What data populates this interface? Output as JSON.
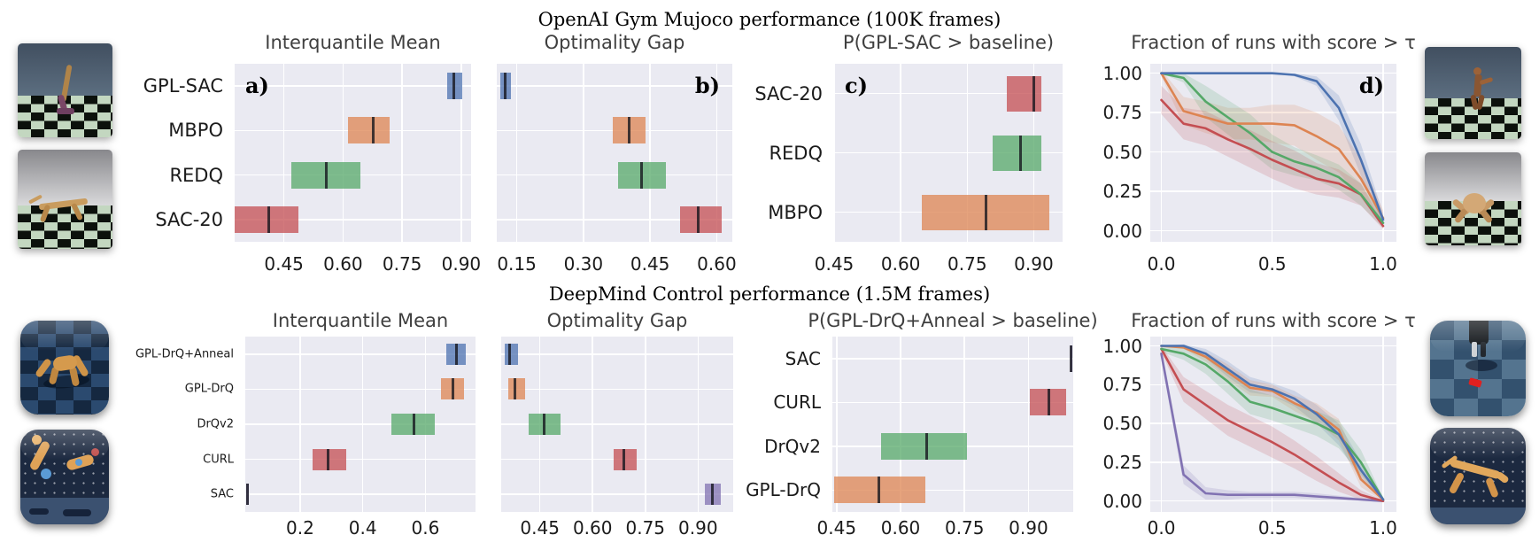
{
  "sections": [
    {
      "id": "gym",
      "title": "OpenAI Gym Mujoco performance (100K frames)"
    },
    {
      "id": "dmc",
      "title": "DeepMind Control performance (1.5M frames)"
    }
  ],
  "palette": {
    "blue": "#4C72B0",
    "orange": "#DD8452",
    "green": "#55A868",
    "red": "#C44E52",
    "purple": "#8172B2",
    "plot_background": "#EAEAF2",
    "gridline": "#FFFFFF",
    "center_line": "#16161E",
    "bar_alpha": 0.75
  },
  "thumbnails": {
    "gym_left": [
      "hopper",
      "half-cheetah"
    ],
    "gym_right": [
      "humanoid",
      "ant"
    ],
    "dmc_left": [
      "quadruped",
      "reacher"
    ],
    "dmc_right": [
      "walker",
      "cheetah"
    ]
  },
  "chart_data": [
    {
      "id": "gym-iqm",
      "type": "interval",
      "title": "Interquantile Mean",
      "panel_label": "a)",
      "panel_side": "left",
      "show_row_labels": true,
      "xlim": [
        0.325,
        0.925
      ],
      "xtick_values": [
        0.45,
        0.6,
        0.75,
        0.9
      ],
      "xtick_labels": [
        "0.45",
        "0.60",
        "0.75",
        "0.90"
      ],
      "rows": [
        {
          "label": "GPL-SAC",
          "color_key": "blue",
          "interval": [
            0.865,
            0.903
          ],
          "center": 0.882
        },
        {
          "label": "MBPO",
          "color_key": "orange",
          "interval": [
            0.612,
            0.718
          ],
          "center": 0.677
        },
        {
          "label": "REDQ",
          "color_key": "green",
          "interval": [
            0.468,
            0.645
          ],
          "center": 0.558
        },
        {
          "label": "SAC-20",
          "color_key": "red",
          "interval": [
            0.325,
            0.486
          ],
          "center": 0.411
        }
      ]
    },
    {
      "id": "gym-og",
      "type": "interval",
      "title": "Optimality Gap",
      "panel_label": "b)",
      "panel_side": "right",
      "show_row_labels": false,
      "xlim": [
        0.105,
        0.635
      ],
      "xtick_values": [
        0.15,
        0.3,
        0.45,
        0.6
      ],
      "xtick_labels": [
        "0.15",
        "0.30",
        "0.45",
        "0.60"
      ],
      "rows": [
        {
          "label": "GPL-SAC",
          "color_key": "blue",
          "interval": [
            0.112,
            0.137
          ],
          "center": 0.124
        },
        {
          "label": "MBPO",
          "color_key": "orange",
          "interval": [
            0.367,
            0.439
          ],
          "center": 0.402
        },
        {
          "label": "REDQ",
          "color_key": "green",
          "interval": [
            0.378,
            0.485
          ],
          "center": 0.431
        },
        {
          "label": "SAC-20",
          "color_key": "red",
          "interval": [
            0.518,
            0.612
          ],
          "center": 0.559
        }
      ]
    },
    {
      "id": "gym-prob",
      "type": "interval",
      "title": "P(GPL-SAC > baseline)",
      "panel_label": "c)",
      "panel_side": "left",
      "show_row_labels": true,
      "xlim": [
        0.45,
        0.965
      ],
      "xtick_values": [
        0.45,
        0.6,
        0.75,
        0.9
      ],
      "xtick_labels": [
        "0.45",
        "0.60",
        "0.75",
        "0.90"
      ],
      "rows": [
        {
          "label": "SAC-20",
          "color_key": "red",
          "interval": [
            0.84,
            0.918
          ],
          "center": 0.9
        },
        {
          "label": "REDQ",
          "color_key": "green",
          "interval": [
            0.807,
            0.918
          ],
          "center": 0.871
        },
        {
          "label": "MBPO",
          "color_key": "orange",
          "interval": [
            0.647,
            0.936
          ],
          "center": 0.793
        }
      ]
    },
    {
      "id": "gym-frac",
      "type": "line",
      "title": "Fraction of runs with score > τ",
      "panel_label": "d)",
      "panel_side": "right",
      "xlim": [
        -0.05,
        1.06
      ],
      "ylim": [
        -0.07,
        1.06
      ],
      "xtick_values": [
        0,
        0.5,
        1
      ],
      "xtick_labels": [
        "0.0",
        "0.5",
        "1.0"
      ],
      "ytick_values": [
        0,
        0.25,
        0.5,
        0.75,
        1
      ],
      "ytick_labels": [
        "0.00",
        "0.25",
        "0.50",
        "0.75",
        "1.00"
      ],
      "x": [
        0,
        0.1,
        0.2,
        0.3,
        0.4,
        0.5,
        0.6,
        0.7,
        0.8,
        0.9,
        1.0
      ],
      "series": [
        {
          "name": "GPL-SAC",
          "color_key": "blue",
          "y": [
            1.0,
            1.0,
            1.0,
            1.0,
            1.0,
            1.0,
            0.99,
            0.95,
            0.78,
            0.45,
            0.07
          ],
          "band": [
            0,
            0,
            0,
            0,
            0,
            0,
            0.01,
            0.03,
            0.08,
            0.1,
            0.04
          ]
        },
        {
          "name": "MBPO",
          "color_key": "orange",
          "y": [
            1.0,
            0.76,
            0.72,
            0.68,
            0.68,
            0.68,
            0.67,
            0.6,
            0.52,
            0.33,
            0.08
          ],
          "band": [
            0.02,
            0.09,
            0.1,
            0.1,
            0.1,
            0.12,
            0.13,
            0.15,
            0.15,
            0.12,
            0.05
          ]
        },
        {
          "name": "REDQ",
          "color_key": "green",
          "y": [
            1.0,
            0.97,
            0.82,
            0.72,
            0.62,
            0.5,
            0.44,
            0.4,
            0.34,
            0.23,
            0.05
          ],
          "band": [
            0,
            0.03,
            0.1,
            0.11,
            0.12,
            0.11,
            0.09,
            0.08,
            0.08,
            0.07,
            0.03
          ]
        },
        {
          "name": "SAC-20",
          "color_key": "red",
          "y": [
            0.83,
            0.68,
            0.65,
            0.58,
            0.52,
            0.45,
            0.39,
            0.33,
            0.3,
            0.23,
            0.03
          ],
          "band": [
            0.09,
            0.1,
            0.11,
            0.11,
            0.12,
            0.12,
            0.12,
            0.1,
            0.09,
            0.07,
            0.02
          ]
        }
      ]
    },
    {
      "id": "dmc-iqm",
      "type": "interval",
      "title": "Interquantile Mean",
      "panel_label": "",
      "panel_side": "left",
      "show_row_labels": true,
      "xlim": [
        0.025,
        0.76
      ],
      "xtick_values": [
        0.2,
        0.4,
        0.6
      ],
      "xtick_labels": [
        "0.2",
        "0.4",
        "0.6"
      ],
      "rows": [
        {
          "label": "GPL-DrQ+Anneal",
          "color_key": "blue",
          "interval": [
            0.668,
            0.728
          ],
          "center": 0.7
        },
        {
          "label": "GPL-DrQ",
          "color_key": "orange",
          "interval": [
            0.649,
            0.722
          ],
          "center": 0.687
        },
        {
          "label": "DrQv2",
          "color_key": "green",
          "interval": [
            0.491,
            0.63
          ],
          "center": 0.564
        },
        {
          "label": "CURL",
          "color_key": "red",
          "interval": [
            0.239,
            0.346
          ],
          "center": 0.289
        },
        {
          "label": "SAC",
          "color_key": "purple",
          "interval": [
            0.028,
            0.037
          ],
          "center": 0.032
        }
      ]
    },
    {
      "id": "dmc-og",
      "type": "interval",
      "title": "Optimality Gap",
      "panel_label": "",
      "panel_side": "right",
      "show_row_labels": false,
      "xlim": [
        0.34,
        1.0
      ],
      "xtick_values": [
        0.45,
        0.6,
        0.75,
        0.9
      ],
      "xtick_labels": [
        "0.45",
        "0.60",
        "0.75",
        "0.90"
      ],
      "rows": [
        {
          "label": "GPL-DrQ+Anneal",
          "color_key": "blue",
          "interval": [
            0.349,
            0.387
          ],
          "center": 0.364
        },
        {
          "label": "GPL-DrQ",
          "color_key": "orange",
          "interval": [
            0.36,
            0.409
          ],
          "center": 0.379
        },
        {
          "label": "DrQv2",
          "color_key": "green",
          "interval": [
            0.417,
            0.51
          ],
          "center": 0.461
        },
        {
          "label": "CURL",
          "color_key": "red",
          "interval": [
            0.659,
            0.725
          ],
          "center": 0.689
        },
        {
          "label": "SAC",
          "color_key": "purple",
          "interval": [
            0.919,
            0.965
          ],
          "center": 0.942
        }
      ]
    },
    {
      "id": "dmc-prob",
      "type": "interval",
      "title": "P(GPL-DrQ+Anneal > baseline)",
      "panel_label": "",
      "panel_side": "left",
      "show_row_labels": true,
      "xlim": [
        0.44,
        1.005
      ],
      "xtick_values": [
        0.45,
        0.6,
        0.75,
        0.9
      ],
      "xtick_labels": [
        "0.45",
        "0.60",
        "0.75",
        "0.90"
      ],
      "rows": [
        {
          "label": "SAC",
          "color_key": "purple",
          "interval": [
            0.999,
            1.001
          ],
          "center": 1.0
        },
        {
          "label": "CURL",
          "color_key": "red",
          "interval": [
            0.903,
            0.988
          ],
          "center": 0.947
        },
        {
          "label": "DrQv2",
          "color_key": "green",
          "interval": [
            0.554,
            0.756
          ],
          "center": 0.661
        },
        {
          "label": "GPL-DrQ",
          "color_key": "orange",
          "interval": [
            0.445,
            0.658
          ],
          "center": 0.549
        }
      ]
    },
    {
      "id": "dmc-frac",
      "type": "line",
      "title": "Fraction of runs with score > τ",
      "panel_label": "",
      "panel_side": "right",
      "xlim": [
        -0.05,
        1.06
      ],
      "ylim": [
        -0.07,
        1.06
      ],
      "xtick_values": [
        0,
        0.5,
        1
      ],
      "xtick_labels": [
        "0.0",
        "0.5",
        "1.0"
      ],
      "ytick_values": [
        0,
        0.25,
        0.5,
        0.75,
        1
      ],
      "ytick_labels": [
        "0.00",
        "0.25",
        "0.50",
        "0.75",
        "1.00"
      ],
      "x": [
        0,
        0.1,
        0.2,
        0.3,
        0.4,
        0.5,
        0.6,
        0.7,
        0.8,
        0.9,
        1.0
      ],
      "series": [
        {
          "name": "GPL-DrQ+Anneal",
          "color_key": "blue",
          "y": [
            1.0,
            1.0,
            0.95,
            0.85,
            0.75,
            0.72,
            0.66,
            0.56,
            0.43,
            0.2,
            0.01
          ],
          "band": [
            0,
            0.01,
            0.03,
            0.05,
            0.05,
            0.04,
            0.05,
            0.06,
            0.07,
            0.06,
            0.01
          ]
        },
        {
          "name": "GPL-DrQ",
          "color_key": "orange",
          "y": [
            1.0,
            0.99,
            0.93,
            0.83,
            0.73,
            0.71,
            0.63,
            0.57,
            0.46,
            0.14,
            0.01
          ],
          "band": [
            0,
            0.01,
            0.03,
            0.05,
            0.05,
            0.04,
            0.05,
            0.06,
            0.07,
            0.05,
            0.01
          ]
        },
        {
          "name": "DrQv2",
          "color_key": "green",
          "y": [
            0.98,
            0.95,
            0.88,
            0.77,
            0.64,
            0.6,
            0.55,
            0.5,
            0.43,
            0.25,
            0.01
          ],
          "band": [
            0.02,
            0.04,
            0.06,
            0.08,
            0.08,
            0.08,
            0.08,
            0.08,
            0.09,
            0.08,
            0.01
          ]
        },
        {
          "name": "CURL",
          "color_key": "red",
          "y": [
            0.98,
            0.72,
            0.62,
            0.52,
            0.45,
            0.38,
            0.3,
            0.21,
            0.12,
            0.04,
            0.0
          ],
          "band": [
            0.02,
            0.08,
            0.09,
            0.1,
            0.1,
            0.1,
            0.09,
            0.08,
            0.06,
            0.03,
            0.005
          ]
        },
        {
          "name": "SAC",
          "color_key": "purple",
          "y": [
            0.95,
            0.17,
            0.05,
            0.04,
            0.04,
            0.04,
            0.04,
            0.03,
            0.02,
            0.01,
            0.0
          ],
          "band": [
            0.04,
            0.06,
            0.04,
            0.03,
            0.02,
            0.02,
            0.02,
            0.02,
            0.015,
            0.01,
            0.005
          ]
        }
      ]
    }
  ]
}
